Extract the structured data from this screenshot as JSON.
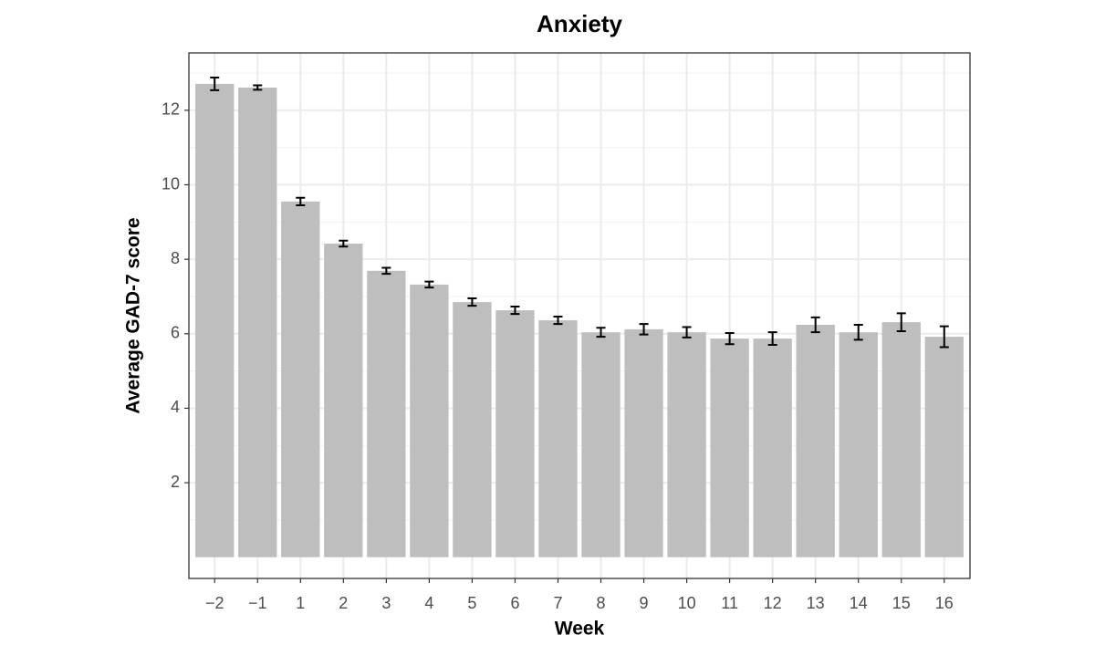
{
  "chart_data": {
    "type": "bar",
    "title": "Anxiety",
    "x_label": "Week",
    "y_label": "Average GAD-7 score",
    "categories": [
      "−2",
      "−1",
      "1",
      "2",
      "3",
      "4",
      "5",
      "6",
      "7",
      "8",
      "9",
      "10",
      "11",
      "12",
      "13",
      "14",
      "15",
      "16"
    ],
    "values": [
      12.71,
      12.61,
      9.55,
      8.42,
      7.69,
      7.32,
      6.85,
      6.63,
      6.36,
      6.04,
      6.12,
      6.04,
      5.87,
      5.87,
      6.24,
      6.04,
      6.31,
      5.92
    ],
    "errors": [
      0.17,
      0.06,
      0.1,
      0.08,
      0.08,
      0.08,
      0.1,
      0.1,
      0.1,
      0.12,
      0.14,
      0.14,
      0.15,
      0.17,
      0.2,
      0.2,
      0.24,
      0.28
    ],
    "color": "#bebebe",
    "ylim": [
      -0.57,
      13.54
    ],
    "yticks": [
      2,
      4,
      6,
      8,
      10,
      12
    ],
    "y_minor_grid": [
      1,
      3,
      5,
      7,
      9,
      11,
      13
    ],
    "grid": true
  }
}
